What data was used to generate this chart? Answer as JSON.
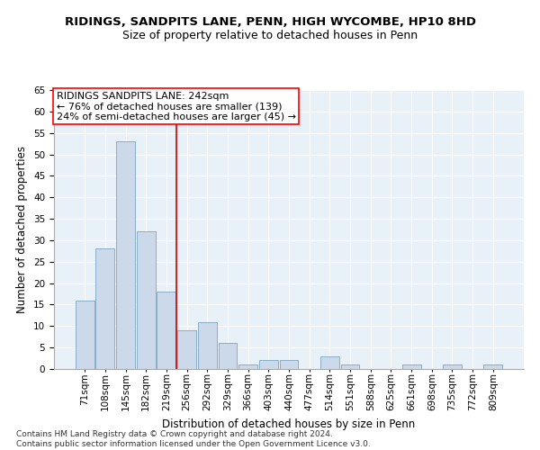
{
  "title1": "RIDINGS, SANDPITS LANE, PENN, HIGH WYCOMBE, HP10 8HD",
  "title2": "Size of property relative to detached houses in Penn",
  "xlabel": "Distribution of detached houses by size in Penn",
  "ylabel": "Number of detached properties",
  "footnote": "Contains HM Land Registry data © Crown copyright and database right 2024.\nContains public sector information licensed under the Open Government Licence v3.0.",
  "bar_labels": [
    "71sqm",
    "108sqm",
    "145sqm",
    "182sqm",
    "219sqm",
    "256sqm",
    "292sqm",
    "329sqm",
    "366sqm",
    "403sqm",
    "440sqm",
    "477sqm",
    "514sqm",
    "551sqm",
    "588sqm",
    "625sqm",
    "661sqm",
    "698sqm",
    "735sqm",
    "772sqm",
    "809sqm"
  ],
  "bar_values": [
    16,
    28,
    53,
    32,
    18,
    9,
    11,
    6,
    1,
    2,
    2,
    0,
    3,
    1,
    0,
    0,
    1,
    0,
    1,
    0,
    1
  ],
  "bar_color": "#ccd9ea",
  "bar_edge_color": "#8aaec8",
  "reference_line_label": "RIDINGS SANDPITS LANE: 242sqm",
  "annotation_line1": "← 76% of detached houses are smaller (139)",
  "annotation_line2": "24% of semi-detached houses are larger (45) →",
  "ylim": [
    0,
    65
  ],
  "yticks": [
    0,
    5,
    10,
    15,
    20,
    25,
    30,
    35,
    40,
    45,
    50,
    55,
    60,
    65
  ],
  "bg_color": "#e8f0f8",
  "title1_fontsize": 9.5,
  "title2_fontsize": 9,
  "axis_label_fontsize": 8.5,
  "tick_fontsize": 7.5,
  "footnote_fontsize": 6.5,
  "annot_fontsize": 8
}
